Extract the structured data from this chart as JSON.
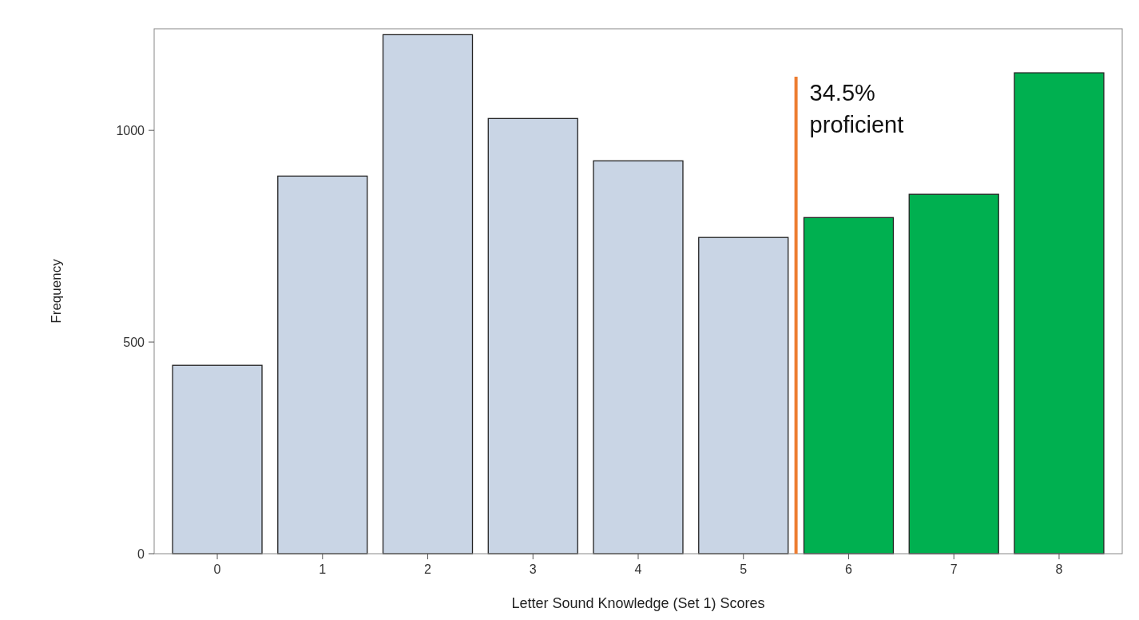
{
  "chart_data": {
    "type": "bar",
    "xlabel": "Letter Sound Knowledge (Set 1) Scores",
    "ylabel": "Frequency",
    "x": [
      0,
      1,
      2,
      3,
      4,
      5,
      6,
      7,
      8
    ],
    "values": [
      445,
      892,
      1226,
      1028,
      928,
      747,
      794,
      849,
      1136
    ],
    "colors": [
      "#c9d5e5",
      "#c9d5e5",
      "#c9d5e5",
      "#c9d5e5",
      "#c9d5e5",
      "#c9d5e5",
      "#00b050",
      "#00b050",
      "#00b050"
    ],
    "xlim": [
      -0.6,
      8.6
    ],
    "xticks": [
      0,
      1,
      2,
      3,
      4,
      5,
      6,
      7,
      8
    ],
    "ylim": [
      0,
      1240
    ],
    "yticks": [
      0,
      500,
      1000
    ],
    "grid": false,
    "ref_lines": [
      {
        "axis": "x",
        "value": 5.5,
        "label": "34.5% proficient",
        "color": "#ed7d31"
      }
    ]
  }
}
